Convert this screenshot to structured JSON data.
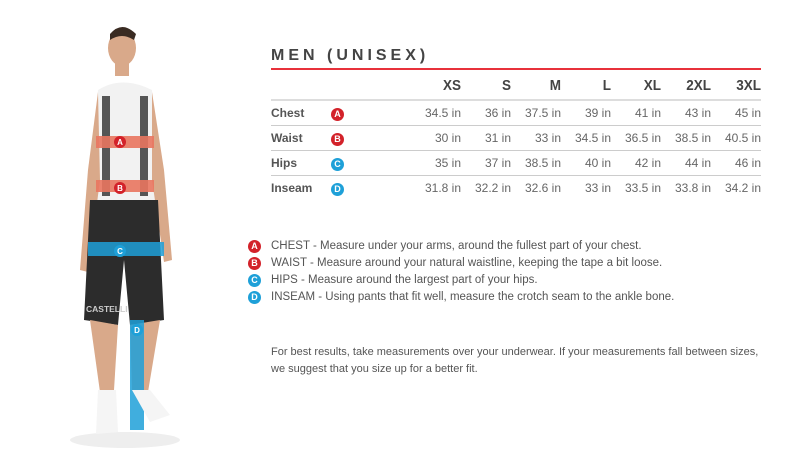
{
  "title": "MEN (UNISEX)",
  "colors": {
    "accent_red": "#d3222a",
    "accent_blue": "#1ea0d8",
    "title_rule": "#e8313b"
  },
  "sizes": [
    "XS",
    "S",
    "M",
    "L",
    "XL",
    "2XL",
    "3XL"
  ],
  "rows": [
    {
      "label": "Chest",
      "badge": "A",
      "values": [
        "34.5 in",
        "36 in",
        "37.5 in",
        "39 in",
        "41 in",
        "43 in",
        "45 in"
      ]
    },
    {
      "label": "Waist",
      "badge": "B",
      "values": [
        "30 in",
        "31 in",
        "33 in",
        "34.5 in",
        "36.5 in",
        "38.5 in",
        "40.5 in"
      ]
    },
    {
      "label": "Hips",
      "badge": "C",
      "values": [
        "35 in",
        "37 in",
        "38.5 in",
        "40 in",
        "42 in",
        "44 in",
        "46 in"
      ]
    },
    {
      "label": "Inseam",
      "badge": "D",
      "values": [
        "31.8 in",
        "32.2 in",
        "32.6 in",
        "33 in",
        "33.5 in",
        "33.8 in",
        "34.2 in"
      ]
    }
  ],
  "legend": [
    {
      "badge": "A",
      "text": "CHEST - Measure under your arms, around the fullest part of your chest."
    },
    {
      "badge": "B",
      "text": "WAIST - Measure around your natural waistline, keeping the tape a bit loose."
    },
    {
      "badge": "C",
      "text": "HIPS - Measure around the largest part of your hips."
    },
    {
      "badge": "D",
      "text": "INSEAM - Using pants that fit well, measure the crotch seam to the ankle bone."
    }
  ],
  "note": "For best results, take measurements over your underwear. If your measurements fall between sizes, we suggest that you size up for a better fit.",
  "figure": {
    "brand_text": "CASTELLI"
  }
}
